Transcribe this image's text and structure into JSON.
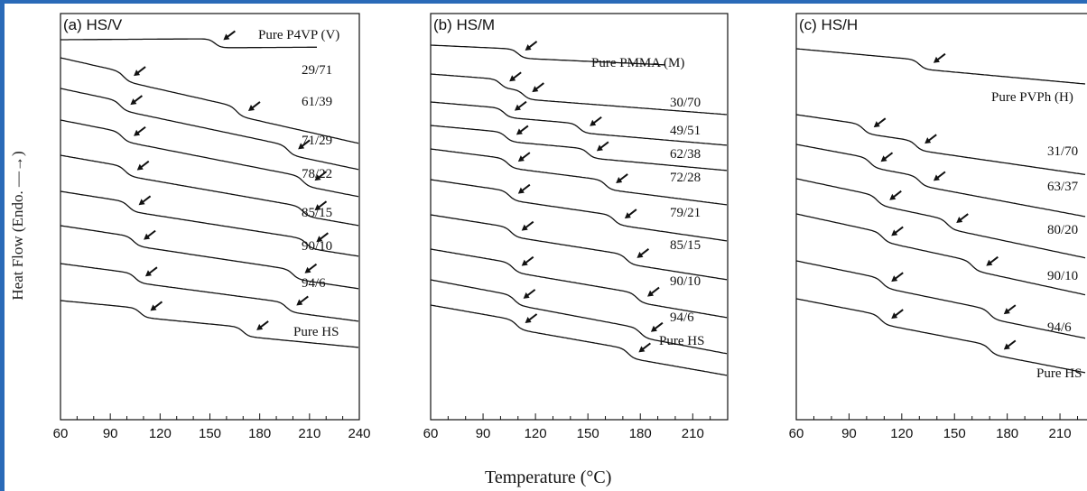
{
  "chart_data": [
    {
      "type": "line",
      "title": "(a) HS/V",
      "xlim": [
        60,
        240
      ],
      "xticks": [
        "60",
        "90",
        "120",
        "150",
        "180",
        "210",
        "240"
      ],
      "series": [
        {
          "name": "Pure P4VP (V)",
          "tg": [
            153
          ],
          "arrows": [
            157
          ]
        },
        {
          "name": "29/71",
          "tg": [
            98,
            166
          ],
          "arrows": [
            103,
            172
          ]
        },
        {
          "name": "61/39",
          "tg": [
            96,
            197
          ],
          "arrows": [
            101,
            202
          ]
        },
        {
          "name": "71/29",
          "tg": [
            97,
            206
          ],
          "arrows": [
            103,
            212
          ]
        },
        {
          "name": "78/22",
          "tg": [
            99,
            206
          ],
          "arrows": [
            105,
            212
          ]
        },
        {
          "name": "85/15",
          "tg": [
            101,
            208
          ],
          "arrows": [
            106,
            213
          ]
        },
        {
          "name": "90/10",
          "tg": [
            104,
            200
          ],
          "arrows": [
            109,
            206
          ]
        },
        {
          "name": "94/6",
          "tg": [
            105,
            196
          ],
          "arrows": [
            110,
            201
          ]
        },
        {
          "name": "Pure HS",
          "tg": [
            108,
            170
          ],
          "arrows": [
            113,
            177
          ]
        }
      ]
    },
    {
      "type": "line",
      "title": "(b) HS/M",
      "xlim": [
        60,
        230
      ],
      "xticks": [
        "60",
        "90",
        "120",
        "150",
        "180",
        "210"
      ],
      "series": [
        {
          "name": "Pure PMMA (M)",
          "tg": [
            110
          ],
          "arrows": [
            113
          ]
        },
        {
          "name": "30/70",
          "tg": [
            100,
            113
          ],
          "arrows": [
            104,
            117
          ]
        },
        {
          "name": "49/51",
          "tg": [
            102,
            145
          ],
          "arrows": [
            107,
            150
          ]
        },
        {
          "name": "62/38",
          "tg": [
            103,
            150
          ],
          "arrows": [
            108,
            154
          ]
        },
        {
          "name": "72/28",
          "tg": [
            104,
            160
          ],
          "arrows": [
            109,
            165
          ]
        },
        {
          "name": "79/21",
          "tg": [
            105,
            165
          ],
          "arrows": [
            109,
            170
          ]
        },
        {
          "name": "85/15",
          "tg": [
            106,
            172
          ],
          "arrows": [
            111,
            177
          ]
        },
        {
          "name": "90/10",
          "tg": [
            107,
            178
          ],
          "arrows": [
            111,
            183
          ]
        },
        {
          "name": "94/6",
          "tg": [
            108,
            180
          ],
          "arrows": [
            112,
            185
          ]
        },
        {
          "name": "Pure HS",
          "tg": [
            109,
            173
          ],
          "arrows": [
            113,
            178
          ]
        }
      ]
    },
    {
      "type": "line",
      "title": "(c) HS/H",
      "xlim": [
        60,
        230
      ],
      "xticks": [
        "60",
        "90",
        "120",
        "150",
        "180",
        "210"
      ],
      "series": [
        {
          "name": "Pure PVPh (H)",
          "tg": [
            130
          ],
          "arrows": [
            137
          ]
        },
        {
          "name": "31/70",
          "tg": [
            98,
            128
          ],
          "arrows": [
            103,
            132
          ]
        },
        {
          "name": "63/37",
          "tg": [
            102,
            130
          ],
          "arrows": [
            107,
            137
          ]
        },
        {
          "name": "80/20",
          "tg": [
            106,
            146
          ],
          "arrows": [
            112,
            150
          ]
        },
        {
          "name": "90/10",
          "tg": [
            109,
            160
          ],
          "arrows": [
            113,
            167
          ]
        },
        {
          "name": "94/6",
          "tg": [
            109,
            170
          ],
          "arrows": [
            113,
            177
          ]
        },
        {
          "name": "Pure HS",
          "tg": [
            108,
            170
          ],
          "arrows": [
            113,
            177
          ]
        }
      ]
    }
  ],
  "ylabel": "Heat Flow (Endo. —→)",
  "xlabel": "Temperature (°C)"
}
